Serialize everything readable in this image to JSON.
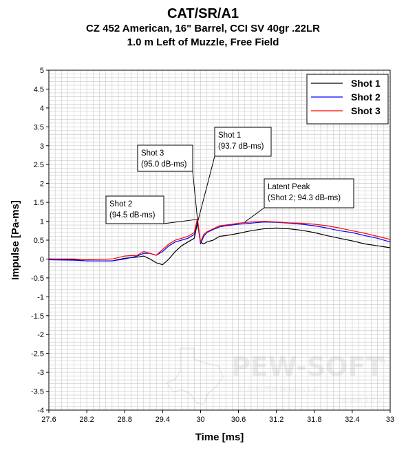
{
  "chart_data": {
    "type": "line",
    "title": "CAT/SR/A1",
    "subtitle_line1": "CZ 452 American, 16\" Barrel, CCI SV 40gr .22LR",
    "subtitle_line2": "1.0 m Left of Muzzle, Free Field",
    "xlabel": "Time [ms]",
    "ylabel": "Impulse [Pa-ms]",
    "xlim": [
      27.6,
      33
    ],
    "ylim": [
      -4,
      5
    ],
    "xticks": [
      "27.6",
      "28.2",
      "28.8",
      "29.4",
      "30",
      "30.6",
      "31.2",
      "31.8",
      "32.4",
      "33"
    ],
    "yticks": [
      "5",
      "4.5",
      "4",
      "3.5",
      "3",
      "2.5",
      "2",
      "1.5",
      "1",
      "0.5",
      "0",
      "-0.5",
      "-1",
      "-1.5",
      "-2",
      "-2.5",
      "-3",
      "-3.5",
      "-4"
    ],
    "grid": true,
    "legend_position": "top-right",
    "series": [
      {
        "name": "Shot 1",
        "color": "#000000",
        "x": [
          27.6,
          28.0,
          28.2,
          28.6,
          28.8,
          29.0,
          29.1,
          29.2,
          29.3,
          29.4,
          29.5,
          29.6,
          29.7,
          29.8,
          29.9,
          29.95,
          30.0,
          30.05,
          30.1,
          30.2,
          30.3,
          30.4,
          30.5,
          30.6,
          30.8,
          31.0,
          31.2,
          31.4,
          31.6,
          31.8,
          32.0,
          32.2,
          32.4,
          32.6,
          32.8,
          33.0
        ],
        "y": [
          0.0,
          -0.02,
          -0.05,
          -0.05,
          0.02,
          0.05,
          0.08,
          0.0,
          -0.1,
          -0.15,
          0.0,
          0.2,
          0.35,
          0.45,
          0.55,
          0.95,
          0.45,
          0.4,
          0.45,
          0.5,
          0.6,
          0.62,
          0.65,
          0.68,
          0.75,
          0.8,
          0.82,
          0.8,
          0.76,
          0.7,
          0.62,
          0.55,
          0.48,
          0.4,
          0.35,
          0.3
        ]
      },
      {
        "name": "Shot 2",
        "color": "#0000ff",
        "x": [
          27.6,
          28.0,
          28.2,
          28.6,
          28.8,
          29.0,
          29.1,
          29.2,
          29.3,
          29.4,
          29.5,
          29.6,
          29.7,
          29.8,
          29.9,
          29.95,
          30.0,
          30.05,
          30.1,
          30.2,
          30.3,
          30.4,
          30.5,
          30.6,
          30.8,
          31.0,
          31.2,
          31.4,
          31.6,
          31.8,
          32.0,
          32.2,
          32.4,
          32.6,
          32.8,
          33.0
        ],
        "y": [
          -0.02,
          -0.03,
          -0.05,
          -0.05,
          0.0,
          0.08,
          0.15,
          0.15,
          0.1,
          0.2,
          0.35,
          0.45,
          0.5,
          0.55,
          0.65,
          1.05,
          0.4,
          0.6,
          0.7,
          0.78,
          0.85,
          0.88,
          0.9,
          0.92,
          0.95,
          0.98,
          0.97,
          0.95,
          0.92,
          0.88,
          0.82,
          0.75,
          0.7,
          0.62,
          0.55,
          0.45
        ]
      },
      {
        "name": "Shot 3",
        "color": "#ff0000",
        "x": [
          27.6,
          28.0,
          28.2,
          28.6,
          28.8,
          29.0,
          29.1,
          29.2,
          29.3,
          29.4,
          29.5,
          29.6,
          29.7,
          29.8,
          29.9,
          29.95,
          30.0,
          30.05,
          30.1,
          30.2,
          30.3,
          30.4,
          30.5,
          30.6,
          30.8,
          31.0,
          31.2,
          31.4,
          31.6,
          31.8,
          32.0,
          32.2,
          32.4,
          32.6,
          32.8,
          33.0
        ],
        "y": [
          0.0,
          0.0,
          -0.02,
          0.0,
          0.08,
          0.1,
          0.2,
          0.15,
          0.1,
          0.25,
          0.4,
          0.5,
          0.55,
          0.6,
          0.7,
          1.07,
          0.45,
          0.65,
          0.72,
          0.8,
          0.88,
          0.9,
          0.92,
          0.95,
          0.98,
          1.0,
          0.98,
          0.96,
          0.95,
          0.92,
          0.88,
          0.82,
          0.75,
          0.68,
          0.6,
          0.52
        ]
      }
    ],
    "annotations": [
      {
        "lines": [
          "Shot 3",
          "(95.0 dB-ms)"
        ],
        "target": [
          29.95,
          1.07
        ]
      },
      {
        "lines": [
          "Shot 1",
          "(93.7 dB-ms)"
        ],
        "target": [
          29.95,
          0.95
        ]
      },
      {
        "lines": [
          "Shot 2",
          "(94.5 dB-ms)"
        ],
        "target": [
          29.95,
          1.05
        ]
      },
      {
        "lines": [
          "Latent Peak",
          "(Shot 2; 94.3 dB-ms)"
        ],
        "target": [
          30.7,
          0.98
        ]
      }
    ],
    "watermark": {
      "brand": "PEW-SOFT",
      "tm": "TM",
      "copyright": "© 2010 PEW Science, LLC",
      "version": "Version 1.0.2"
    }
  }
}
